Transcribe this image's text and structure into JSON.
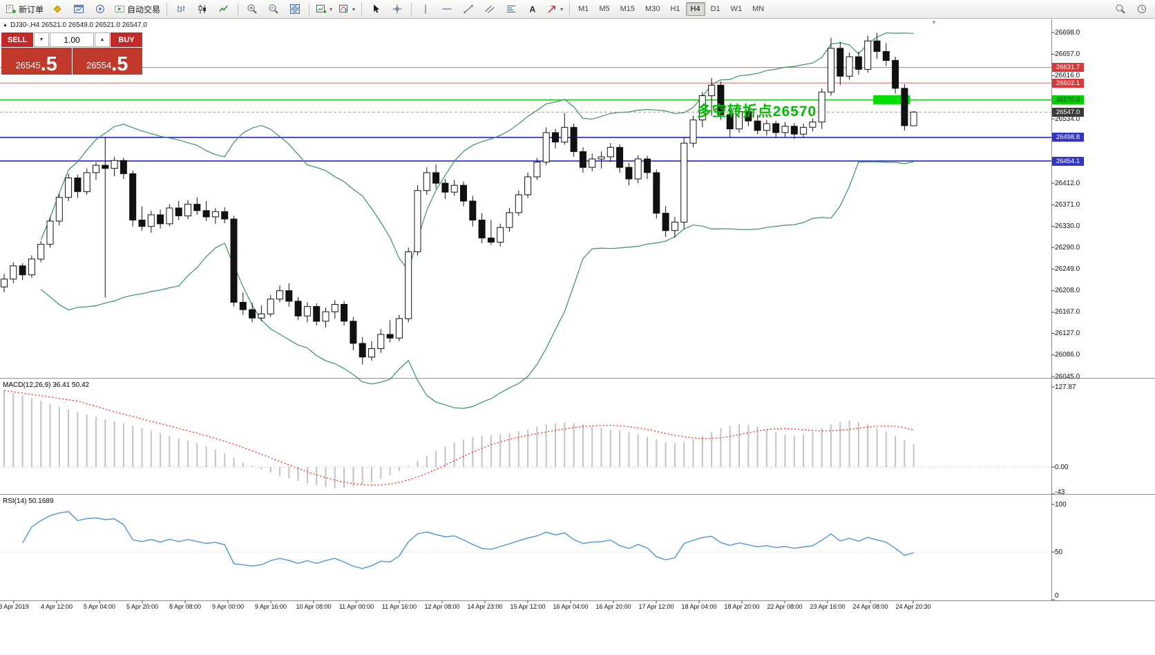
{
  "toolbar": {
    "active_timeframe": "H4",
    "items": [
      {
        "name": "new-order-button",
        "icon": "new-order",
        "label": "新订单"
      },
      {
        "name": "market-watch-icon",
        "icon": "market-watch"
      },
      {
        "name": "chart-window-icon",
        "icon": "chart-window"
      },
      {
        "name": "navigator-icon",
        "icon": "navigator"
      },
      {
        "name": "autotrading-button",
        "icon": "autotrading",
        "label": "自动交易"
      },
      {
        "sep": true
      },
      {
        "name": "bar-chart-icon",
        "icon": "bar-chart"
      },
      {
        "name": "candle-chart-icon",
        "icon": "candle-chart"
      },
      {
        "name": "line-chart-icon",
        "icon": "line-chart"
      },
      {
        "sep": true
      },
      {
        "name": "zoom-in-icon",
        "icon": "zoom-in"
      },
      {
        "name": "zoom-out-icon",
        "icon": "zoom-out"
      },
      {
        "name": "tile-windows-icon",
        "icon": "tile-windows"
      },
      {
        "sep": true
      },
      {
        "name": "new-chart-icon",
        "icon": "new-chart",
        "dropdown": true
      },
      {
        "name": "indicators-icon",
        "icon": "indicators",
        "dropdown": true
      },
      {
        "sep": true
      },
      {
        "name": "cursor-icon",
        "icon": "cursor"
      },
      {
        "name": "crosshair-icon",
        "icon": "crosshair"
      },
      {
        "sep": true
      },
      {
        "name": "vline-icon",
        "icon": "vline"
      },
      {
        "name": "hline-icon",
        "icon": "hline"
      },
      {
        "name": "trendline-icon",
        "icon": "trendline"
      },
      {
        "name": "channel-icon",
        "icon": "channel"
      },
      {
        "name": "fibonacci-icon",
        "icon": "fibonacci"
      },
      {
        "name": "text-tool-icon",
        "icon": "text"
      },
      {
        "name": "arrow-tool-icon",
        "icon": "arrow",
        "dropdown": true
      },
      {
        "sep": true
      },
      {
        "tf": "M1"
      },
      {
        "tf": "M5"
      },
      {
        "tf": "M15"
      },
      {
        "tf": "M30"
      },
      {
        "tf": "H1"
      },
      {
        "tf": "H4"
      },
      {
        "tf": "D1"
      },
      {
        "tf": "W1"
      },
      {
        "tf": "MN"
      },
      {
        "spacer": true
      },
      {
        "name": "search-icon",
        "icon": "search"
      },
      {
        "name": "clock-icon",
        "icon": "clock"
      }
    ]
  },
  "symbol_bar": {
    "marker": "▲",
    "title": "DJ30-,H4 26521.0 26549.0 26521.0 26547.0"
  },
  "trade_panel": {
    "sell_label": "SELL",
    "buy_label": "BUY",
    "volume": "1.00",
    "down_glyph": "▼",
    "up_glyph": "▲",
    "sell_price_main": "26545",
    "sell_price_frac": ".5",
    "buy_price_main": "26554",
    "buy_price_frac": ".5"
  },
  "annotation": {
    "text": "多空转折点26570",
    "color": "#00bb00",
    "bar": 75.4,
    "price": 26569
  },
  "chart_data": {
    "type": "candlestick",
    "symbol": "DJ30-",
    "timeframe": "H4",
    "ohlc": [
      [
        26215,
        26240,
        26205,
        26230
      ],
      [
        26230,
        26262,
        26222,
        26255
      ],
      [
        26255,
        26260,
        26228,
        26238
      ],
      [
        26238,
        26275,
        26232,
        26268
      ],
      [
        26268,
        26302,
        26262,
        26296
      ],
      [
        26296,
        26348,
        26290,
        26340
      ],
      [
        26340,
        26392,
        26332,
        26385
      ],
      [
        26385,
        26430,
        26378,
        26422
      ],
      [
        26422,
        26428,
        26384,
        26396
      ],
      [
        26396,
        26440,
        26390,
        26432
      ],
      [
        26432,
        26452,
        26418,
        26446
      ],
      [
        26446,
        26500,
        26195,
        26440
      ],
      [
        26440,
        26462,
        26425,
        26455
      ],
      [
        26455,
        26460,
        26420,
        26430
      ],
      [
        26430,
        26436,
        26330,
        26342
      ],
      [
        26342,
        26368,
        26322,
        26330
      ],
      [
        26330,
        26360,
        26318,
        26352
      ],
      [
        26352,
        26362,
        26326,
        26335
      ],
      [
        26335,
        26372,
        26330,
        26365
      ],
      [
        26365,
        26378,
        26342,
        26350
      ],
      [
        26350,
        26380,
        26344,
        26372
      ],
      [
        26372,
        26385,
        26352,
        26360
      ],
      [
        26360,
        26378,
        26340,
        26348
      ],
      [
        26348,
        26365,
        26335,
        26358
      ],
      [
        26358,
        26366,
        26336,
        26344
      ],
      [
        26344,
        26350,
        26178,
        26186
      ],
      [
        26186,
        26205,
        26162,
        26172
      ],
      [
        26172,
        26185,
        26148,
        26156
      ],
      [
        26156,
        26180,
        26150,
        26164
      ],
      [
        26164,
        26200,
        26158,
        26192
      ],
      [
        26192,
        26218,
        26186,
        26208
      ],
      [
        26208,
        26222,
        26178,
        26188
      ],
      [
        26188,
        26196,
        26152,
        26160
      ],
      [
        26160,
        26186,
        26148,
        26178
      ],
      [
        26178,
        26184,
        26142,
        26150
      ],
      [
        26150,
        26176,
        26138,
        26168
      ],
      [
        26168,
        26190,
        26155,
        26182
      ],
      [
        26182,
        26188,
        26142,
        26150
      ],
      [
        26150,
        26158,
        26095,
        26108
      ],
      [
        26108,
        26120,
        26068,
        26082
      ],
      [
        26082,
        26112,
        26075,
        26098
      ],
      [
        26098,
        26135,
        26090,
        26125
      ],
      [
        26125,
        26152,
        26110,
        26118
      ],
      [
        26118,
        26162,
        26112,
        26155
      ],
      [
        26155,
        26290,
        26148,
        26282
      ],
      [
        26282,
        26408,
        26275,
        26398
      ],
      [
        26398,
        26442,
        26390,
        26432
      ],
      [
        26432,
        26448,
        26402,
        26412
      ],
      [
        26412,
        26420,
        26382,
        26395
      ],
      [
        26395,
        26418,
        26388,
        26408
      ],
      [
        26408,
        26415,
        26368,
        26378
      ],
      [
        26378,
        26388,
        26330,
        26342
      ],
      [
        26342,
        26355,
        26298,
        26308
      ],
      [
        26308,
        26342,
        26295,
        26300
      ],
      [
        26300,
        26335,
        26292,
        26328
      ],
      [
        26328,
        26365,
        26320,
        26356
      ],
      [
        26356,
        26398,
        26350,
        26390
      ],
      [
        26390,
        26432,
        26384,
        26424
      ],
      [
        26424,
        26460,
        26418,
        26452
      ],
      [
        26452,
        26518,
        26446,
        26508
      ],
      [
        26508,
        26515,
        26478,
        26490
      ],
      [
        26490,
        26545,
        26485,
        26518
      ],
      [
        26518,
        26525,
        26462,
        26472
      ],
      [
        26472,
        26480,
        26432,
        26442
      ],
      [
        26442,
        26468,
        26435,
        26458
      ],
      [
        26458,
        26472,
        26440,
        26462
      ],
      [
        26462,
        26488,
        26452,
        26480
      ],
      [
        26480,
        26486,
        26432,
        26442
      ],
      [
        26442,
        26450,
        26408,
        26420
      ],
      [
        26420,
        26465,
        26412,
        26458
      ],
      [
        26458,
        26464,
        26420,
        26432
      ],
      [
        26432,
        26438,
        26345,
        26355
      ],
      [
        26355,
        26368,
        26310,
        26322
      ],
      [
        26322,
        26348,
        26308,
        26338
      ],
      [
        26338,
        26498,
        26325,
        26488
      ],
      [
        26488,
        26540,
        26480,
        26532
      ],
      [
        26532,
        26585,
        26518,
        26578
      ],
      [
        26578,
        26612,
        26540,
        26598
      ],
      [
        26598,
        26605,
        26532,
        26542
      ],
      [
        26542,
        26552,
        26498,
        26515
      ],
      [
        26515,
        26558,
        26508,
        26548
      ],
      [
        26548,
        26556,
        26520,
        26530
      ],
      [
        26530,
        26542,
        26505,
        26512
      ],
      [
        26512,
        26532,
        26502,
        26525
      ],
      [
        26525,
        26530,
        26498,
        26508
      ],
      [
        26508,
        26528,
        26500,
        26520
      ],
      [
        26520,
        26526,
        26496,
        26505
      ],
      [
        26505,
        26525,
        26498,
        26518
      ],
      [
        26518,
        26535,
        26510,
        26528
      ],
      [
        26528,
        26592,
        26515,
        26585
      ],
      [
        26585,
        26688,
        26578,
        26668
      ],
      [
        26668,
        26680,
        26598,
        26615
      ],
      [
        26615,
        26660,
        26608,
        26652
      ],
      [
        26652,
        26662,
        26618,
        26628
      ],
      [
        26628,
        26692,
        26622,
        26682
      ],
      [
        26682,
        26697,
        26648,
        26662
      ],
      [
        26662,
        26678,
        26635,
        26645
      ],
      [
        26645,
        26652,
        26582,
        26592
      ],
      [
        26592,
        26600,
        26512,
        26521
      ],
      [
        26521,
        26549,
        26521,
        26547
      ]
    ],
    "price_ticks": [
      26698,
      26657,
      26616,
      26575,
      26534,
      26493,
      26452,
      26412,
      26371,
      26330,
      26290,
      26249,
      26208,
      26167,
      26127,
      26086,
      26045
    ],
    "visible_price_labels": [
      "26698.0",
      "26657.0",
      "26616.0",
      "26534.0",
      "26412.0",
      "26371.0",
      "26330.0",
      "26290.0",
      "26249.0",
      "26208.0",
      "26167.0",
      "26127.0",
      "26086.0",
      "26045.0"
    ],
    "badges": [
      {
        "text": "26631.7",
        "price": 26631.7,
        "bg": "#d63a3a",
        "fg": "#ffffff"
      },
      {
        "text": "26602.1",
        "price": 26602.1,
        "bg": "#d63a3a",
        "fg": "#ffffff"
      },
      {
        "text": "26570.0",
        "price": 26570.0,
        "bg": "#00d200",
        "fg": "#003300"
      },
      {
        "text": "26547.0",
        "price": 26547.0,
        "bg": "#3c3c3c",
        "fg": "#ffffff"
      },
      {
        "text": "26498.8",
        "price": 26498.8,
        "bg": "#3434c8",
        "fg": "#ffffff"
      },
      {
        "text": "26454.1",
        "price": 26454.1,
        "bg": "#3434c8",
        "fg": "#ffffff"
      }
    ],
    "hlines": [
      {
        "price": 26631.7,
        "color": "#e06060",
        "width": 1
      },
      {
        "price": 26602.1,
        "color": "#e06060",
        "width": 1
      },
      {
        "price": 26570.0,
        "color": "#00b400",
        "width": 1.2
      },
      {
        "price": 26498.8,
        "color": "#3434c8",
        "width": 1.8
      },
      {
        "price": 26454.1,
        "color": "#3434c8",
        "width": 1.8
      }
    ],
    "current_price": {
      "price": 26547.0,
      "line_color": "#999999"
    },
    "bollinger": {
      "period": 20,
      "deviation": 2,
      "color": "#3a915f"
    },
    "highlight_box": {
      "bar_from": 94.6,
      "bar_to": 98.6,
      "price_top": 26579,
      "price_bottom": 26562,
      "color": "#00e000"
    },
    "time_labels": [
      "3 Apr 2019",
      "4 Apr 12:00",
      "5 Apr 04:00",
      "5 Apr 20:00",
      "8 Apr 08:00",
      "9 Apr 00:00",
      "9 Apr 16:00",
      "10 Apr 08:00",
      "11 Apr 00:00",
      "11 Apr 16:00",
      "12 Apr 08:00",
      "14 Apr 23:00",
      "15 Apr 12:00",
      "16 Apr 04:00",
      "16 Apr 20:00",
      "17 Apr 12:00",
      "18 Apr 04:00",
      "18 Apr 20:00",
      "22 Apr 08:00",
      "23 Apr 16:00",
      "24 Apr 08:00",
      "24 Apr 20:30"
    ],
    "macd": {
      "label": "MACD(12,26,9) 36.41 50.42",
      "axis_labels": [
        "127.87",
        "0.00",
        "-43"
      ],
      "axis_values": [
        127.87,
        0,
        -43
      ],
      "signal_period": 9,
      "hist_color": "#c2c2c2",
      "signal_color": "#ff2020",
      "histogram": [
        122,
        118,
        114,
        110,
        106,
        101,
        96,
        92,
        88,
        84,
        80,
        76,
        73,
        70,
        66,
        62,
        58,
        54,
        50,
        46,
        42,
        38,
        33,
        28,
        22,
        15,
        8,
        2,
        -4,
        -9,
        -14,
        -18,
        -22,
        -26,
        -29,
        -32,
        -34,
        -33,
        -31,
        -28,
        -24,
        -19,
        -13,
        -6,
        2,
        10,
        18,
        26,
        33,
        39,
        44,
        48,
        50,
        51,
        52,
        54,
        57,
        60,
        64,
        68,
        70,
        71,
        70,
        68,
        65,
        62,
        60,
        58,
        55,
        52,
        48,
        44,
        40,
        38,
        40,
        44,
        50,
        56,
        62,
        66,
        68,
        67,
        64,
        60,
        56,
        52,
        50,
        52,
        56,
        62,
        68,
        72,
        74,
        72,
        68,
        62,
        56,
        50,
        43,
        36
      ]
    },
    "rsi": {
      "label": "RSI(14) 50.1689",
      "period": 14,
      "axis_labels": [
        "100",
        "50",
        "0"
      ],
      "axis_values": [
        100,
        50,
        0
      ],
      "line_color": "#4f94d4",
      "level": 50
    }
  }
}
